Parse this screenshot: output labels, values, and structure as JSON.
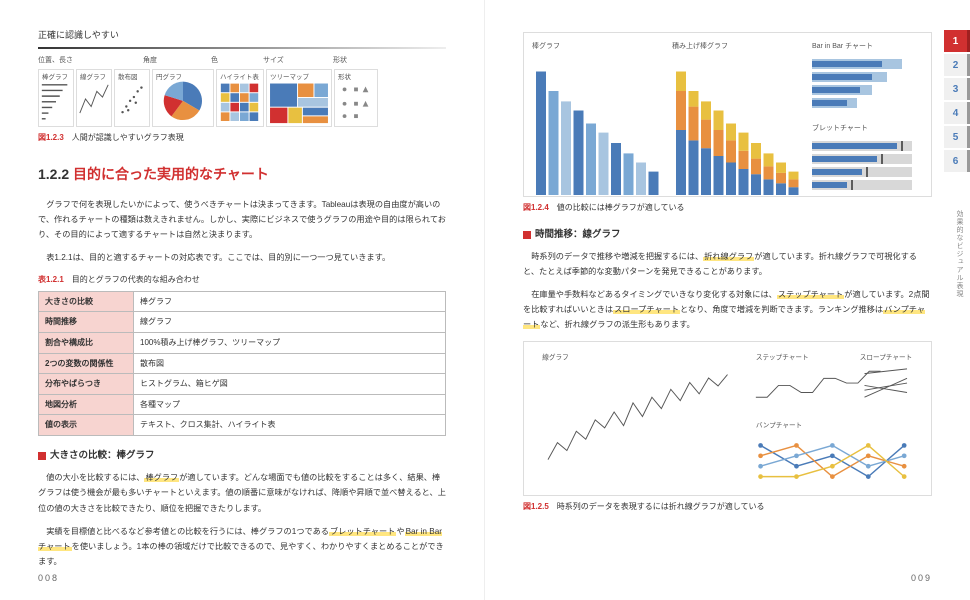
{
  "pageLeft": "008",
  "pageRight": "009",
  "vertLabel": "効果的なビジュアル表現",
  "chapterTabs": [
    "1",
    "2",
    "3",
    "4",
    "5",
    "6"
  ],
  "activeTab": 0,
  "topHeader": "正確に認識しやすい",
  "axisLabels": [
    "位置、長さ",
    "角度",
    "色",
    "サイズ",
    "形状"
  ],
  "miniCharts": [
    "棒グラフ",
    "線グラフ",
    "散布図",
    "円グラフ",
    "ハイライト表",
    "ツリーマップ",
    "形状"
  ],
  "fig123": {
    "num": "図1.2.3",
    "text": "人間が認識しやすいグラフ表現"
  },
  "section": {
    "num": "1.2.2",
    "title": "目的に合った実用的なチャート"
  },
  "para1": "グラフで何を表現したいかによって、使うべきチャートは決まってきます。Tableauは表現の自由度が高いので、作れるチャートの種類は数えきれません。しかし、実際にビジネスで使うグラフの用途や目的は限られており、その目的によって適するチャートは自然と決まります。",
  "para2": "表1.2.1は、目的と適するチャートの対応表です。ここでは、目的別に一つ一つ見ていきます。",
  "tableCaption": {
    "num": "表1.2.1",
    "text": "目的とグラフの代表的な組み合わせ"
  },
  "tableRows": [
    [
      "大きさの比較",
      "棒グラフ"
    ],
    [
      "時間推移",
      "線グラフ"
    ],
    [
      "割合や構成比",
      "100%積み上げ棒グラフ、ツリーマップ"
    ],
    [
      "2つの変数の関係性",
      "散布図"
    ],
    [
      "分布やばらつき",
      "ヒストグラム、箱ヒゲ図"
    ],
    [
      "地図分析",
      "各種マップ"
    ],
    [
      "値の表示",
      "テキスト、クロス集計、ハイライト表"
    ]
  ],
  "sub1": "大きさの比較：棒グラフ",
  "sub1p1a": "値の大小を比較するには、",
  "sub1p1hl": "棒グラフ",
  "sub1p1b": "が適しています。どんな場面でも値の比較をすることは多く、結果、棒グラフは使う機会が最も多いチャートといえます。値の順番に意味がなければ、降順や昇順で並べ替えると、上位の値の大きさを比較できたり、順位を把握できたりします。",
  "sub1p2a": "実績を目標値と比べるなど参考値との比較を行うには、棒グラフの1つである",
  "sub1p2hl1": "ブレットチャート",
  "sub1p2mid": "や",
  "sub1p2hl2": "Bar in Barチャート",
  "sub1p2b": "を使いましょう。1本の棒の領域だけで比較できるので、見やすく、わかりやすくまとめることができます。",
  "barPanels": [
    "棒グラフ",
    "積み上げ棒グラフ",
    "Bar in Bar チャート",
    "ブレットチャート"
  ],
  "fig124": {
    "num": "図1.2.4",
    "text": "値の比較には棒グラフが適している"
  },
  "sub2": "時間推移：線グラフ",
  "sub2p1a": "時系列のデータで推移や増減を把握するには、",
  "sub2p1hl": "折れ線グラフ",
  "sub2p1b": "が適しています。折れ線グラフで可視化すると、たとえば季節的な変動パターンを発見できることがあります。",
  "sub2p2a": "在庫量や手数料などあるタイミングでいきなり変化する対象には、",
  "sub2p2hl1": "ステップチャート",
  "sub2p2mid1": "が適しています。2点間を比較すればいいときは",
  "sub2p2hl2": "スロープチャート",
  "sub2p2mid2": "となり、角度で増減を判断できます。ランキング推移は",
  "sub2p2hl3": "バンプチャート",
  "sub2p2b": "など、折れ線グラフの派生形もあります。",
  "linePanels": [
    "線グラフ",
    "ステップチャート",
    "スロープチャート",
    "バンプチャート"
  ],
  "fig125": {
    "num": "図1.2.5",
    "text": "時系列のデータを表現するには折れ線グラフが適している"
  },
  "colors": {
    "red": "#d13030",
    "highlight": "#ffe680",
    "blue1": "#4a7bb8",
    "blue2": "#7aa8d4",
    "blue3": "#a8c5e0",
    "orange": "#e89040",
    "yellow": "#e8c040"
  },
  "barChart": {
    "type": "bar",
    "values": [
      95,
      80,
      72,
      65,
      55,
      48,
      40,
      32,
      25,
      18
    ],
    "colors": [
      "#4a7bb8",
      "#7aa8d4",
      "#a8c5e0",
      "#4a7bb8",
      "#7aa8d4",
      "#a8c5e0",
      "#4a7bb8",
      "#7aa8d4",
      "#a8c5e0",
      "#4a7bb8"
    ]
  },
  "stackedChart": {
    "type": "stacked-bar",
    "series": [
      [
        50,
        42,
        36,
        30,
        25,
        20,
        16,
        12,
        9,
        6
      ],
      [
        30,
        26,
        22,
        20,
        17,
        14,
        12,
        10,
        8,
        6
      ],
      [
        15,
        12,
        14,
        15,
        13,
        14,
        12,
        10,
        8,
        6
      ]
    ],
    "colors": [
      "#4a7bb8",
      "#e89040",
      "#e8c040"
    ]
  },
  "barInBar": {
    "type": "bar-in-bar",
    "outer": [
      90,
      75,
      60,
      45
    ],
    "inner": [
      70,
      60,
      48,
      35
    ],
    "outerColor": "#a8c5e0",
    "innerColor": "#4a7bb8"
  },
  "bullet": {
    "type": "bullet",
    "values": [
      85,
      65,
      50,
      35
    ],
    "targets": [
      90,
      70,
      55,
      40
    ],
    "barColor": "#4a7bb8",
    "bgColor": "#d8d8d8"
  },
  "lineChart": {
    "type": "line",
    "points": [
      20,
      35,
      28,
      45,
      38,
      55,
      48,
      62,
      50,
      70,
      58,
      75,
      65,
      82,
      72,
      88,
      78,
      92,
      85,
      95
    ],
    "color": "#555"
  },
  "stepChart": {
    "type": "step",
    "points": [
      20,
      20,
      45,
      45,
      30,
      30,
      60,
      60,
      50,
      50,
      75,
      75
    ],
    "color": "#555"
  },
  "slopeChart": {
    "type": "slope",
    "pairs": [
      [
        20,
        60
      ],
      [
        45,
        30
      ],
      [
        70,
        80
      ],
      [
        35,
        50
      ]
    ],
    "color": "#555"
  },
  "bumpChart": {
    "type": "bump",
    "series": [
      [
        1,
        3,
        2,
        4,
        1
      ],
      [
        2,
        1,
        4,
        2,
        3
      ],
      [
        3,
        2,
        1,
        3,
        2
      ],
      [
        4,
        4,
        3,
        1,
        4
      ]
    ],
    "colors": [
      "#4a7bb8",
      "#e89040",
      "#7aa8d4",
      "#e8c040"
    ]
  }
}
